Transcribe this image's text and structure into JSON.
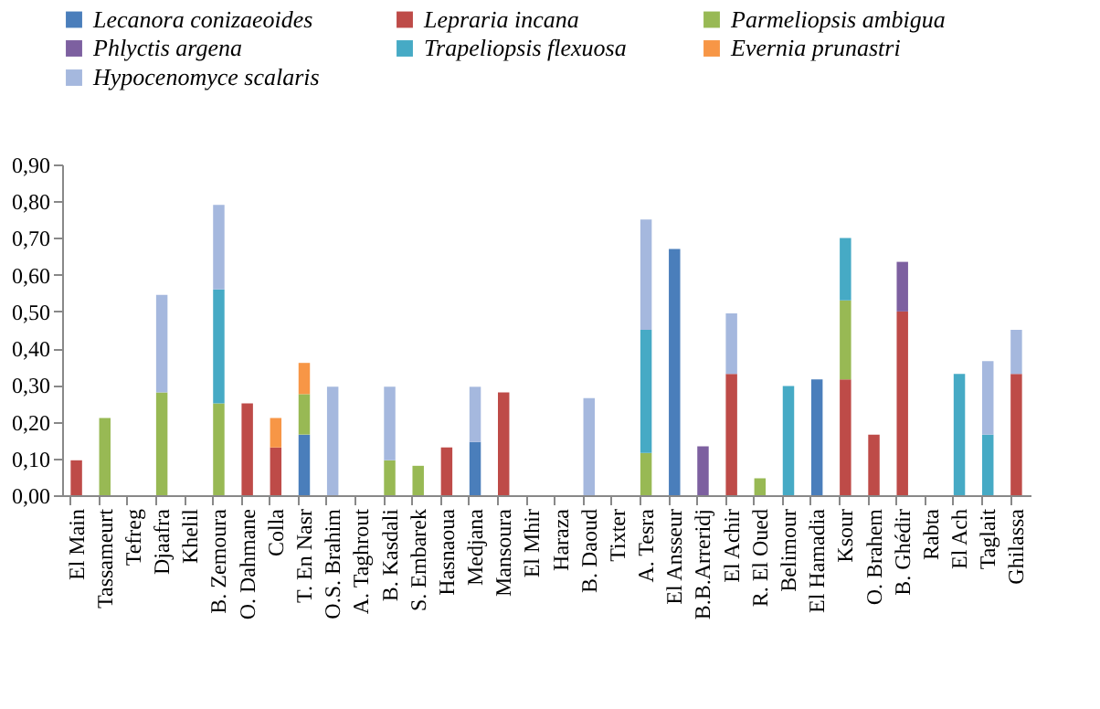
{
  "chart_data": {
    "type": "bar",
    "stacked": true,
    "categories": [
      "El Main",
      "Tassameurt",
      "Tefreg",
      "Djaafra",
      "Khelil",
      "B. Zemoura",
      "O. Dahmane",
      "Colla",
      "T. En Nasr",
      "O.S. Brahim",
      "A. Taghrout",
      "B. Kasdali",
      "S. Embarek",
      "Hasnaoua",
      "Medjana",
      "Mansoura",
      "El Mhir",
      "Haraza",
      "B. Daoud",
      "Tixter",
      "A. Tesra",
      "El Ansseur",
      "B.B.Arreridj",
      "El Achir",
      "R. El Oued",
      "Belimour",
      "El Hamadia",
      "Ksour",
      "O. Brahem",
      "B. Ghédir",
      "Rabta",
      "El Ach",
      "Taglait",
      "Ghilassa"
    ],
    "series": [
      {
        "name": "Lecanora conizaeoides",
        "color": "#4a7ebb",
        "values": [
          null,
          null,
          null,
          null,
          null,
          null,
          null,
          null,
          0.165,
          null,
          null,
          null,
          null,
          null,
          0.145,
          null,
          null,
          null,
          null,
          null,
          null,
          0.67,
          null,
          null,
          null,
          null,
          0.315,
          null,
          null,
          null,
          null,
          null,
          null,
          null
        ]
      },
      {
        "name": "Lepraria incana",
        "color": "#be4b48",
        "values": [
          0.095,
          null,
          null,
          null,
          null,
          null,
          0.25,
          0.13,
          null,
          null,
          null,
          null,
          null,
          0.13,
          null,
          0.28,
          null,
          null,
          null,
          null,
          null,
          null,
          null,
          0.33,
          null,
          null,
          null,
          0.315,
          0.165,
          0.5,
          null,
          null,
          null,
          0.33
        ]
      },
      {
        "name": "Parmeliopsis ambigua",
        "color": "#98b954",
        "values": [
          null,
          0.21,
          null,
          0.28,
          null,
          0.25,
          null,
          null,
          0.11,
          null,
          null,
          0.095,
          0.08,
          null,
          null,
          null,
          null,
          null,
          null,
          null,
          0.115,
          null,
          null,
          null,
          0.046,
          null,
          null,
          0.215,
          null,
          null,
          null,
          null,
          null,
          null
        ]
      },
      {
        "name": "Phlyctis argena",
        "color": "#7d60a0",
        "values": [
          null,
          null,
          null,
          null,
          null,
          null,
          null,
          null,
          null,
          null,
          null,
          null,
          null,
          null,
          null,
          null,
          null,
          null,
          null,
          null,
          null,
          null,
          0.133,
          null,
          null,
          null,
          null,
          null,
          null,
          0.135,
          null,
          null,
          null,
          null
        ]
      },
      {
        "name": "Trapeliopsis flexuosa",
        "color": "#46aac5",
        "values": [
          null,
          null,
          null,
          null,
          null,
          0.31,
          null,
          null,
          null,
          null,
          null,
          null,
          null,
          null,
          null,
          null,
          null,
          null,
          null,
          null,
          0.335,
          null,
          null,
          null,
          null,
          0.297,
          null,
          0.17,
          null,
          null,
          null,
          0.33,
          0.165,
          null
        ]
      },
      {
        "name": "Evernia prunastri",
        "color": "#f79646",
        "values": [
          null,
          null,
          null,
          null,
          null,
          null,
          null,
          0.08,
          0.085,
          null,
          null,
          null,
          null,
          null,
          null,
          null,
          null,
          null,
          null,
          null,
          null,
          null,
          null,
          null,
          null,
          null,
          null,
          null,
          null,
          null,
          null,
          null,
          null,
          null
        ]
      },
      {
        "name": "Hypocenomyce scalaris",
        "color": "#a5b8de",
        "values": [
          null,
          null,
          null,
          0.265,
          null,
          0.23,
          null,
          null,
          null,
          0.295,
          null,
          0.2,
          null,
          null,
          0.15,
          null,
          null,
          null,
          0.264,
          null,
          0.3,
          null,
          null,
          0.165,
          null,
          null,
          null,
          null,
          null,
          null,
          null,
          null,
          0.2,
          0.12
        ]
      }
    ],
    "ylim": [
      0,
      0.9
    ],
    "yticks": [
      {
        "value": 0,
        "label": "0,00"
      },
      {
        "value": 0.1,
        "label": "0,10"
      },
      {
        "value": 0.2,
        "label": "0,20"
      },
      {
        "value": 0.3,
        "label": "0,30"
      },
      {
        "value": 0.4,
        "label": "0,40"
      },
      {
        "value": 0.5,
        "label": "0,50"
      },
      {
        "value": 0.6,
        "label": "0,60"
      },
      {
        "value": 0.7,
        "label": "0,70"
      },
      {
        "value": 0.8,
        "label": "0,80"
      },
      {
        "value": 0.9,
        "label": "0,90"
      }
    ],
    "grid": false,
    "legend": "top"
  }
}
